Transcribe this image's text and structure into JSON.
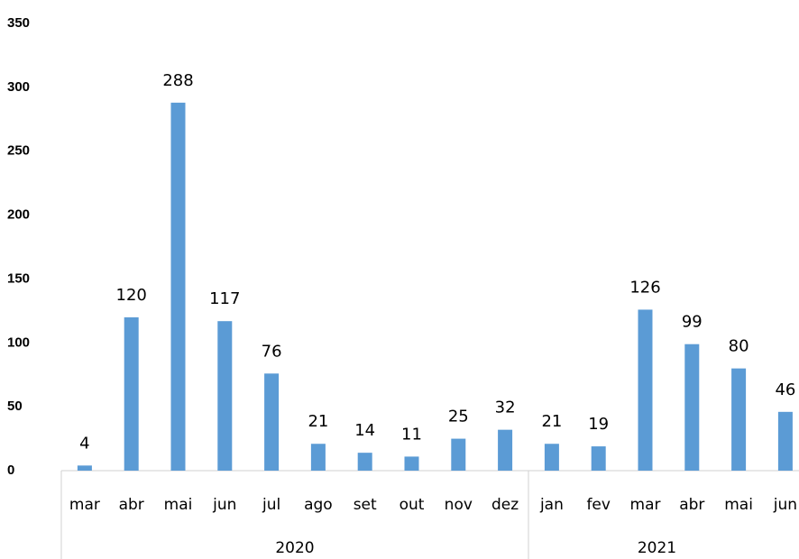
{
  "chart_data": {
    "type": "bar",
    "color": "#5b9bd5",
    "groups": [
      {
        "label": "2020",
        "categories": [
          "mar",
          "abr",
          "mai",
          "jun",
          "jul",
          "ago",
          "set",
          "out",
          "nov",
          "dez"
        ],
        "values": [
          4,
          120,
          288,
          117,
          76,
          21,
          14,
          11,
          25,
          32
        ]
      },
      {
        "label": "2021",
        "categories": [
          "jan",
          "fev",
          "mar",
          "abr",
          "mai",
          "jun"
        ],
        "values": [
          21,
          19,
          126,
          99,
          80,
          46
        ]
      }
    ],
    "ylim": [
      0,
      350
    ],
    "yticks": [
      0,
      50,
      100,
      150,
      200,
      250,
      300,
      350
    ],
    "grid": false
  }
}
